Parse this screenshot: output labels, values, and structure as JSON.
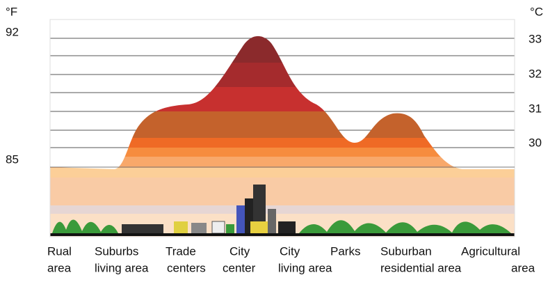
{
  "left_axis": {
    "unit": "°F",
    "labels": [
      "92",
      "85"
    ]
  },
  "right_axis": {
    "unit": "°C",
    "labels": [
      "33",
      "32",
      "31",
      "30"
    ]
  },
  "bottom_labels": {
    "line1": [
      "Rual",
      "Suburbs",
      "Trade",
      "City",
      "City",
      "Parks",
      "Suburban",
      "Agricultural"
    ],
    "line2": [
      "area",
      "living area",
      "centers",
      "center",
      "living area",
      "residential area",
      "area"
    ]
  }
}
